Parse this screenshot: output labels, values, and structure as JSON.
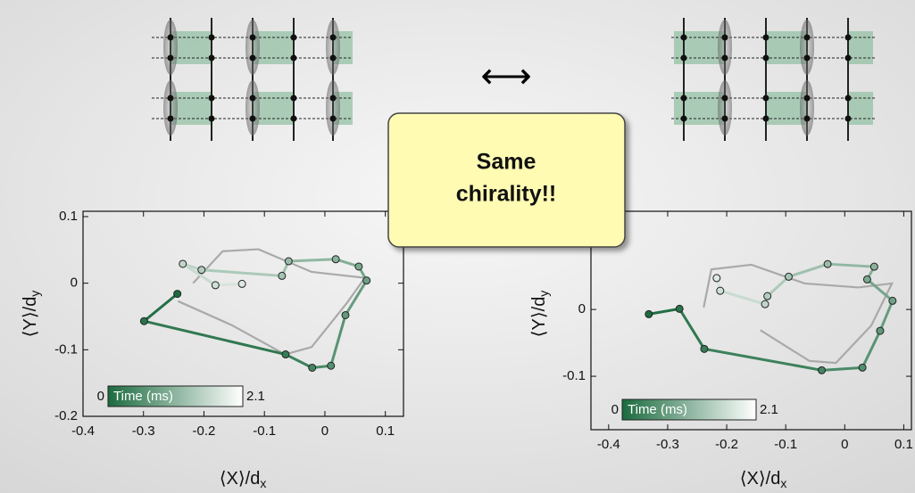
{
  "chart_data": [
    {
      "type": "line",
      "x_label": "⟨X⟩/d",
      "x_label_sub": "x",
      "y_label": "⟨Y⟩/d",
      "y_label_sub": "y",
      "xlim": [
        -0.4,
        0.13
      ],
      "ylim": [
        -0.2,
        0.108
      ],
      "xticks": [
        -0.4,
        -0.3,
        -0.2,
        -0.1,
        0,
        0.1
      ],
      "yticks": [
        -0.2,
        -0.1,
        0,
        0.1
      ],
      "colorbar": {
        "label": "Time (ms)",
        "ticks": [
          0,
          2.1
        ]
      },
      "series": [
        {
          "color": "#1b6b3f",
          "color_end": "#ffffff",
          "markers": true,
          "x": [
            -0.244,
            -0.299,
            -0.065,
            -0.021,
            0.01,
            0.034,
            0.069,
            0.056,
            0.018,
            -0.06,
            -0.071,
            -0.204,
            -0.235,
            -0.181,
            -0.137
          ],
          "values": [
            -0.016,
            -0.057,
            -0.107,
            -0.127,
            -0.124,
            -0.048,
            0.004,
            0.025,
            0.036,
            0.033,
            0.011,
            0.02,
            0.029,
            -0.003,
            -0.001
          ]
        },
        {
          "color": "#a9a9a9",
          "x": [
            -0.218,
            -0.169,
            -0.11,
            -0.022,
            0.066,
            0.037,
            -0.022,
            -0.066,
            -0.154,
            -0.243
          ],
          "values": [
            0.0,
            0.048,
            0.051,
            0.017,
            0.008,
            -0.029,
            -0.096,
            -0.107,
            -0.063,
            -0.027
          ]
        }
      ]
    },
    {
      "type": "line",
      "x_label": "⟨X⟩/d",
      "x_label_sub": "x",
      "y_label": "⟨Y⟩/d",
      "y_label_sub": "y",
      "xlim": [
        -0.43,
        0.113
      ],
      "ylim": [
        -0.18,
        0.147
      ],
      "xticks": [
        -0.4,
        -0.3,
        -0.2,
        -0.1,
        0,
        0.1
      ],
      "yticks": [
        -0.1,
        0
      ],
      "colorbar": {
        "label": "Time (ms)",
        "ticks": [
          0,
          2.1
        ]
      },
      "series": [
        {
          "color": "#1b6b3f",
          "color_end": "#ffffff",
          "markers": true,
          "x": [
            -0.332,
            -0.28,
            -0.238,
            -0.039,
            0.03,
            0.06,
            0.081,
            0.038,
            0.05,
            -0.029,
            -0.095,
            -0.131,
            -0.135,
            -0.211,
            -0.217
          ],
          "values": [
            -0.007,
            0.001,
            -0.059,
            -0.091,
            -0.087,
            -0.032,
            0.013,
            0.045,
            0.064,
            0.068,
            0.049,
            0.02,
            0.008,
            0.028,
            0.047
          ]
        },
        {
          "color": "#a9a9a9",
          "x": [
            -0.239,
            -0.226,
            -0.158,
            -0.068,
            0.023,
            0.08,
            0.045,
            -0.015,
            -0.06,
            -0.143
          ],
          "values": [
            0.003,
            0.06,
            0.067,
            0.039,
            0.033,
            0.039,
            -0.024,
            -0.08,
            -0.077,
            -0.031
          ]
        }
      ]
    }
  ],
  "arrow": "⟷",
  "callout": [
    "Same",
    "chirality!!"
  ]
}
